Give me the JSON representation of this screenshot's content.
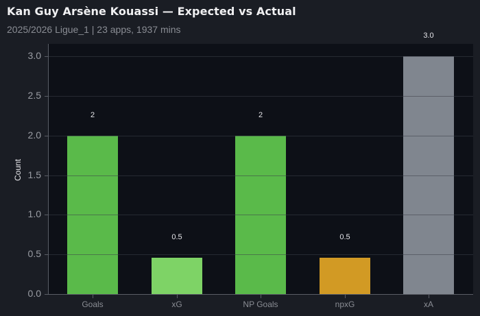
{
  "header": {
    "title": "Kan Guy Arsène Kouassi — Expected vs Actual",
    "subtitle": "2025/2026 Ligue_1 | 23 apps, 1937 mins"
  },
  "chart_data": {
    "type": "bar",
    "title": "Kan Guy Arsène Kouassi — Expected vs Actual",
    "subtitle": "2025/2026 Ligue_1 | 23 apps, 1937 mins",
    "xlabel": "",
    "ylabel": "Count",
    "ylim": [
      0,
      3.15
    ],
    "yticks": [
      "0.0",
      "0.5",
      "1.0",
      "1.5",
      "2.0",
      "2.5",
      "3.0"
    ],
    "grid": true,
    "legend": null,
    "categories": [
      "Goals",
      "xG",
      "NP Goals",
      "npxG",
      "xA"
    ],
    "values": [
      2,
      0.46,
      2,
      0.46,
      3.0
    ],
    "value_labels": [
      "2",
      "0.5",
      "2",
      "0.5",
      "3.0"
    ],
    "colors": [
      "#5aba4a",
      "#7ed366",
      "#5aba4a",
      "#d29a24",
      "#80868f"
    ]
  },
  "colors": {
    "background": "#1a1d24",
    "plot_background": "#0d1017"
  }
}
